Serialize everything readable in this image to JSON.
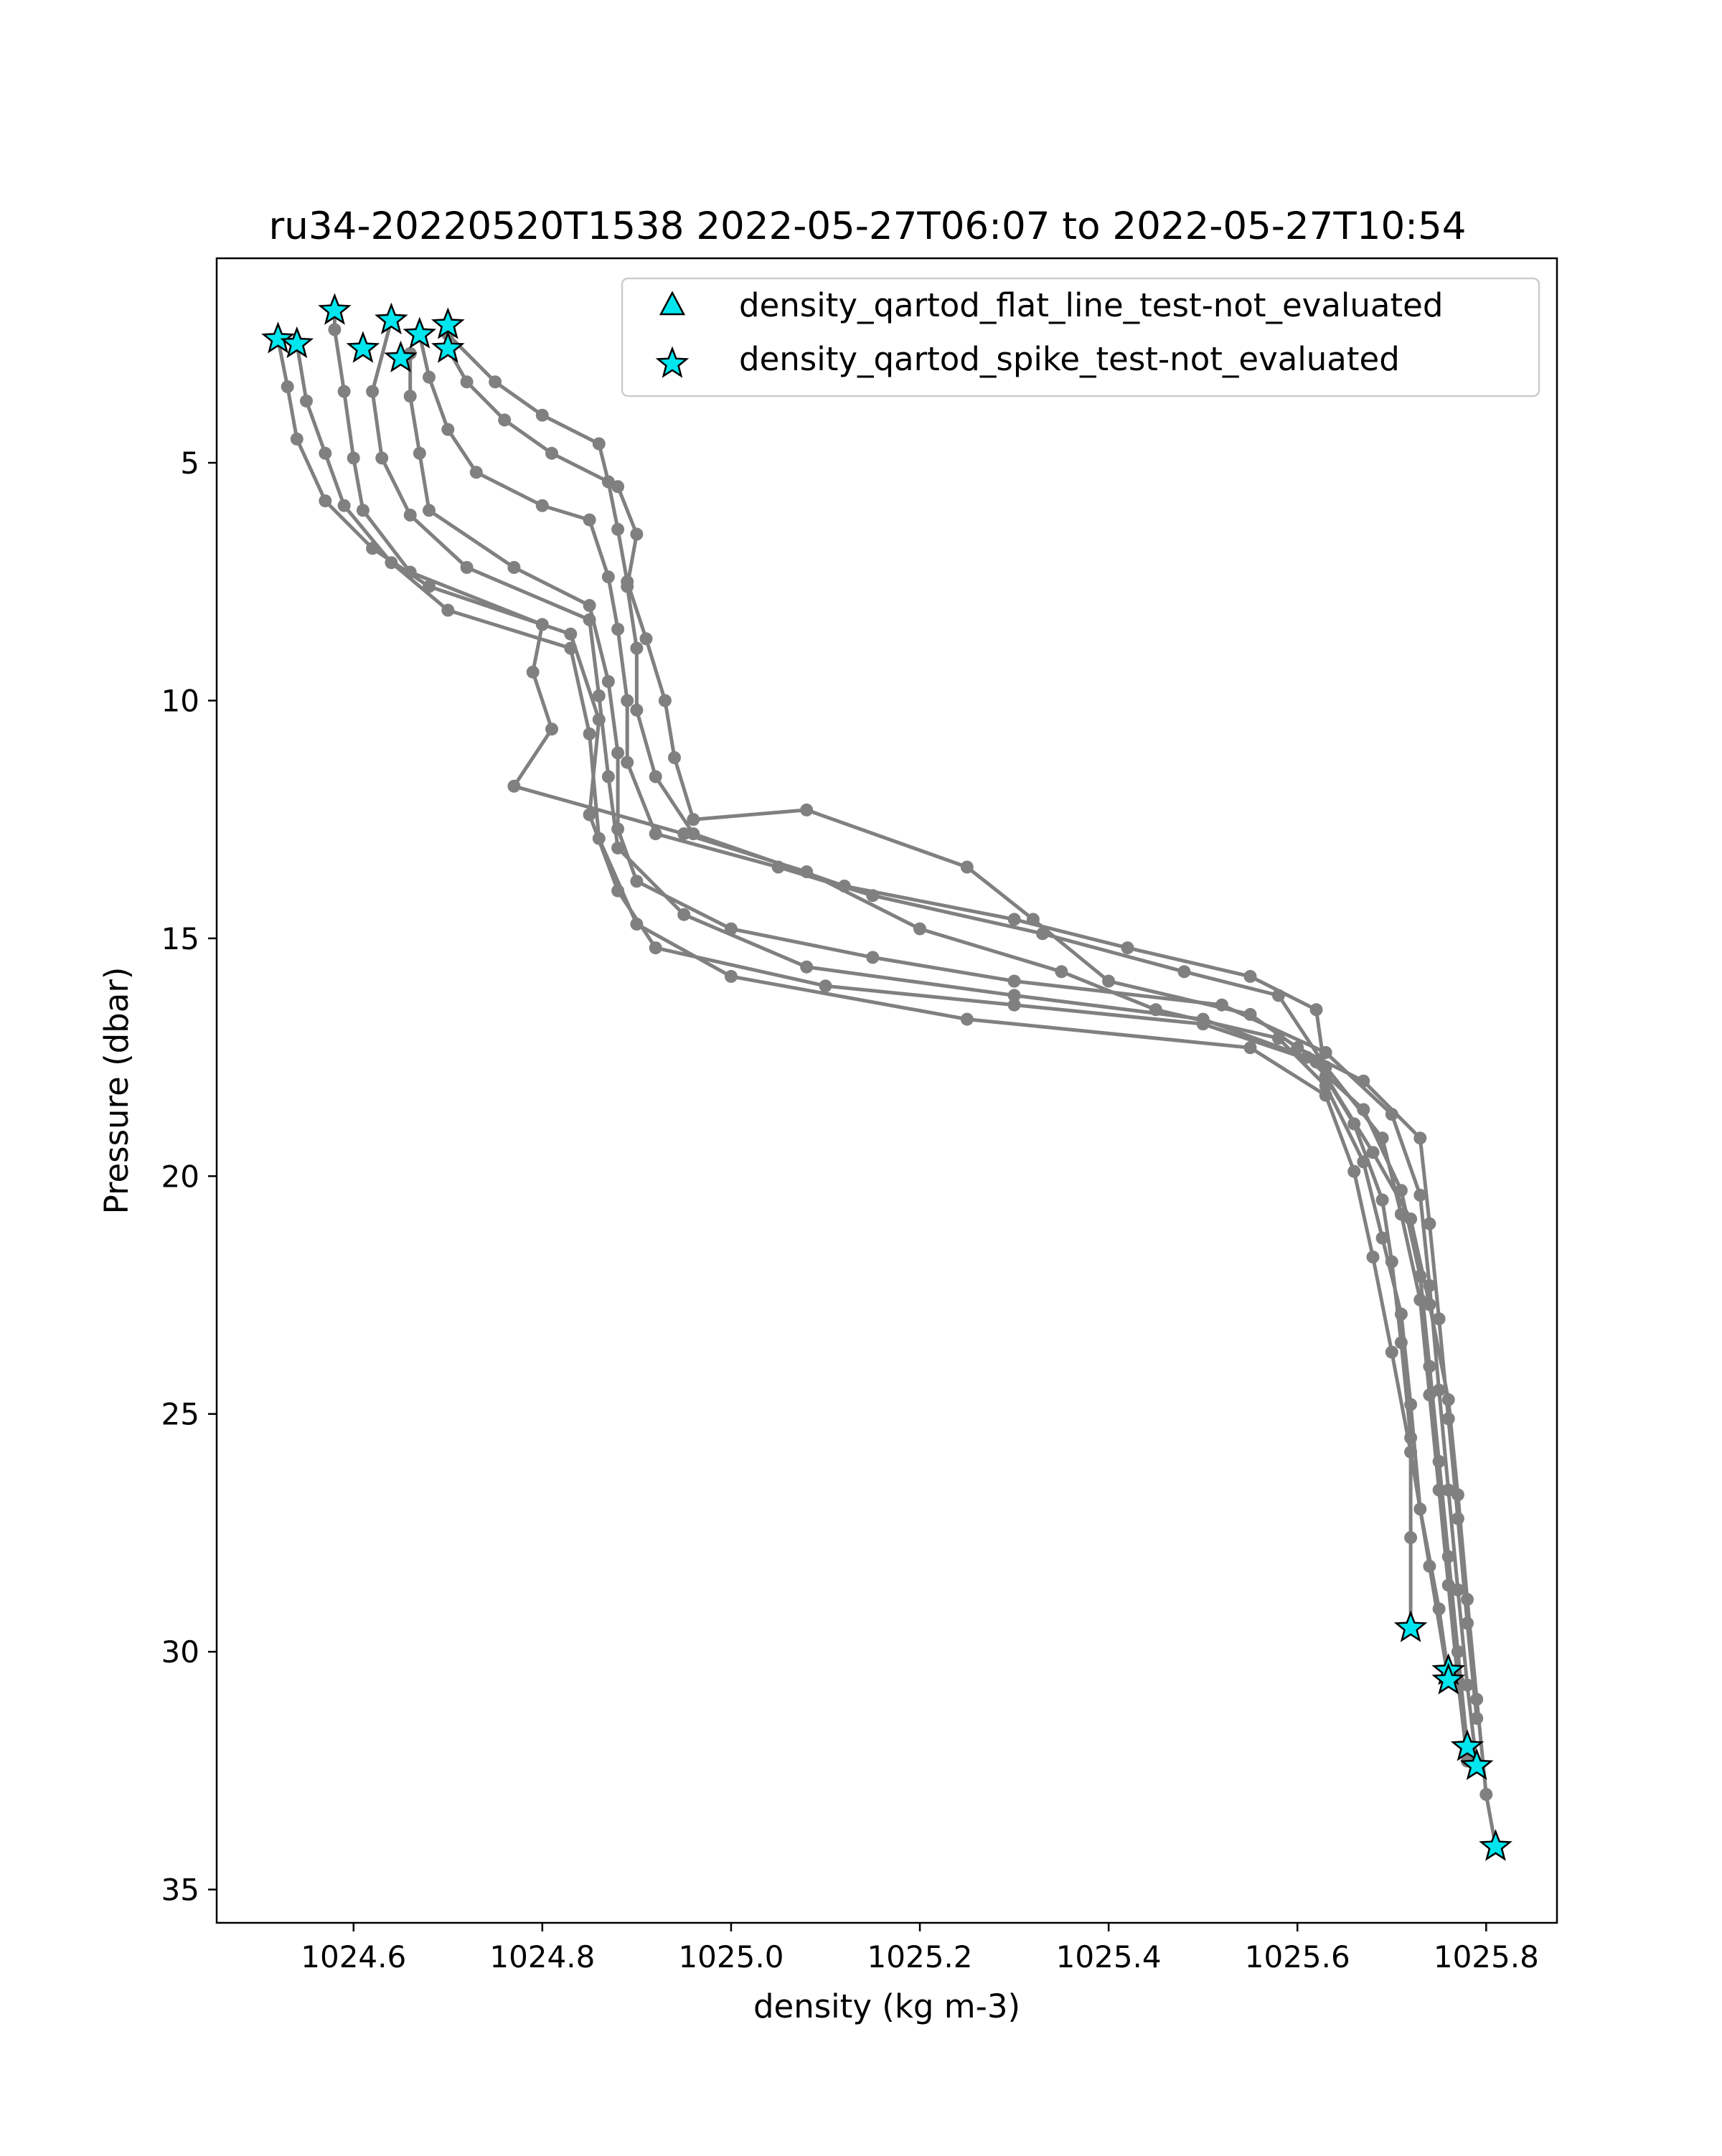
{
  "chart_data": {
    "type": "line",
    "title": "ru34-20220520T1538 2022-05-27T06:07 to 2022-05-27T10:54",
    "xlabel": "density (kg m-3)",
    "ylabel": "Pressure (dbar)",
    "xlim": [
      1024.455,
      1025.875
    ],
    "ylim": [
      35.7,
      0.7
    ],
    "y_inverted": true,
    "x_ticks": [
      1024.6,
      1024.8,
      1025.0,
      1025.2,
      1025.4,
      1025.6,
      1025.8
    ],
    "x_tick_labels": [
      "1024.6",
      "1024.8",
      "1025.0",
      "1025.2",
      "1025.4",
      "1025.6",
      "1025.8"
    ],
    "y_ticks": [
      5,
      10,
      15,
      20,
      25,
      30,
      35
    ],
    "y_tick_labels": [
      "5",
      "10",
      "15",
      "20",
      "25",
      "30",
      "35"
    ],
    "grid": false,
    "legend_position": "top-right",
    "line_color": "#808080",
    "marker_color": "#00e5ee",
    "legend": [
      {
        "label": "density_qartod_flat_line_test-not_evaluated",
        "marker": "triangle"
      },
      {
        "label": "density_qartod_spike_test-not_evaluated",
        "marker": "star"
      }
    ],
    "profiles": [
      {
        "points": [
          [
            1024.52,
            2.4
          ],
          [
            1024.53,
            3.4
          ],
          [
            1024.54,
            4.5
          ],
          [
            1024.57,
            5.8
          ],
          [
            1024.62,
            6.8
          ],
          [
            1024.68,
            7.6
          ],
          [
            1024.83,
            8.6
          ],
          [
            1024.86,
            10.4
          ],
          [
            1024.85,
            12.4
          ],
          [
            1024.88,
            14.0
          ],
          [
            1024.92,
            15.2
          ],
          [
            1025.1,
            16.0
          ],
          [
            1025.3,
            16.4
          ],
          [
            1025.5,
            16.8
          ],
          [
            1025.62,
            17.6
          ],
          [
            1025.66,
            18.9
          ],
          [
            1025.69,
            20.5
          ],
          [
            1025.7,
            21.8
          ],
          [
            1025.71,
            23.5
          ],
          [
            1025.72,
            25.5
          ],
          [
            1025.72,
            27.6
          ],
          [
            1025.72,
            29.5
          ]
        ]
      },
      {
        "points": [
          [
            1024.54,
            2.5
          ],
          [
            1024.55,
            3.7
          ],
          [
            1024.57,
            4.8
          ],
          [
            1024.59,
            5.9
          ],
          [
            1024.64,
            7.1
          ],
          [
            1024.7,
            8.1
          ],
          [
            1024.83,
            8.9
          ],
          [
            1024.85,
            10.7
          ],
          [
            1024.86,
            12.9
          ],
          [
            1024.9,
            14.7
          ],
          [
            1025.0,
            15.8
          ],
          [
            1025.25,
            16.7
          ],
          [
            1025.55,
            17.3
          ],
          [
            1025.63,
            18.3
          ],
          [
            1025.66,
            19.9
          ],
          [
            1025.68,
            21.7
          ],
          [
            1025.7,
            23.7
          ],
          [
            1025.72,
            25.8
          ],
          [
            1025.74,
            28.2
          ],
          [
            1025.76,
            30.6
          ]
        ]
      },
      {
        "points": [
          [
            1024.58,
            1.8
          ],
          [
            1024.58,
            2.2
          ],
          [
            1024.59,
            3.5
          ],
          [
            1024.6,
            4.9
          ],
          [
            1024.61,
            6.0
          ],
          [
            1024.66,
            7.3
          ],
          [
            1024.8,
            8.4
          ],
          [
            1024.79,
            9.4
          ],
          [
            1024.81,
            10.6
          ],
          [
            1024.77,
            11.8
          ],
          [
            1024.95,
            12.8
          ],
          [
            1025.08,
            13.6
          ],
          [
            1025.2,
            14.8
          ],
          [
            1025.35,
            15.7
          ],
          [
            1025.45,
            16.5
          ],
          [
            1025.58,
            17.1
          ],
          [
            1025.63,
            18.1
          ],
          [
            1025.67,
            19.7
          ],
          [
            1025.69,
            21.3
          ],
          [
            1025.71,
            22.9
          ],
          [
            1025.72,
            24.8
          ],
          [
            1025.73,
            27.0
          ],
          [
            1025.75,
            29.1
          ],
          [
            1025.76,
            30.5
          ]
        ]
      },
      {
        "points": [
          [
            1024.64,
            2.0
          ],
          [
            1024.62,
            3.5
          ],
          [
            1024.63,
            4.9
          ],
          [
            1024.66,
            6.1
          ],
          [
            1024.72,
            7.2
          ],
          [
            1024.85,
            8.3
          ],
          [
            1024.86,
            9.9
          ],
          [
            1024.87,
            11.6
          ],
          [
            1024.88,
            13.1
          ],
          [
            1024.95,
            14.5
          ],
          [
            1025.08,
            15.6
          ],
          [
            1025.3,
            16.2
          ],
          [
            1025.5,
            16.7
          ],
          [
            1025.61,
            17.5
          ],
          [
            1025.67,
            18.6
          ],
          [
            1025.71,
            20.3
          ],
          [
            1025.73,
            22.1
          ],
          [
            1025.74,
            24.0
          ],
          [
            1025.75,
            26.0
          ],
          [
            1025.76,
            28.0
          ],
          [
            1025.77,
            30.0
          ],
          [
            1025.78,
            32.0
          ]
        ]
      },
      {
        "points": [
          [
            1024.66,
            2.7
          ],
          [
            1024.66,
            3.6
          ],
          [
            1024.67,
            4.8
          ],
          [
            1024.68,
            6.0
          ],
          [
            1024.77,
            7.2
          ],
          [
            1024.85,
            8.0
          ],
          [
            1024.87,
            9.6
          ],
          [
            1024.88,
            11.1
          ],
          [
            1024.88,
            12.7
          ],
          [
            1024.9,
            13.8
          ],
          [
            1025.0,
            14.8
          ],
          [
            1025.15,
            15.4
          ],
          [
            1025.3,
            15.9
          ],
          [
            1025.52,
            16.4
          ],
          [
            1025.63,
            17.4
          ],
          [
            1025.7,
            18.7
          ],
          [
            1025.73,
            20.4
          ],
          [
            1025.74,
            22.3
          ],
          [
            1025.75,
            24.5
          ],
          [
            1025.76,
            26.6
          ],
          [
            1025.77,
            28.7
          ],
          [
            1025.78,
            30.7
          ],
          [
            1025.79,
            32.4
          ]
        ]
      },
      {
        "points": [
          [
            1024.7,
            2.6
          ],
          [
            1024.72,
            3.3
          ],
          [
            1024.76,
            4.1
          ],
          [
            1024.81,
            4.8
          ],
          [
            1024.88,
            5.5
          ],
          [
            1024.9,
            6.5
          ],
          [
            1024.89,
            7.6
          ],
          [
            1024.9,
            8.9
          ],
          [
            1024.9,
            10.2
          ],
          [
            1024.92,
            11.6
          ],
          [
            1024.96,
            12.8
          ],
          [
            1025.12,
            13.9
          ],
          [
            1025.3,
            14.6
          ],
          [
            1025.42,
            15.2
          ],
          [
            1025.55,
            15.8
          ],
          [
            1025.62,
            16.5
          ],
          [
            1025.63,
            17.9
          ],
          [
            1025.68,
            19.5
          ],
          [
            1025.72,
            20.9
          ],
          [
            1025.74,
            22.7
          ],
          [
            1025.76,
            24.7
          ],
          [
            1025.77,
            26.7
          ],
          [
            1025.78,
            28.9
          ],
          [
            1025.79,
            31.0
          ],
          [
            1025.8,
            33.0
          ],
          [
            1025.81,
            34.1
          ]
        ]
      },
      {
        "points": [
          [
            1024.7,
            2.3
          ],
          [
            1024.75,
            3.3
          ],
          [
            1024.8,
            4.0
          ],
          [
            1024.86,
            4.6
          ],
          [
            1024.87,
            5.4
          ],
          [
            1024.88,
            6.4
          ],
          [
            1024.89,
            7.5
          ],
          [
            1024.91,
            8.7
          ],
          [
            1024.93,
            10.0
          ],
          [
            1024.94,
            11.2
          ],
          [
            1024.96,
            12.5
          ],
          [
            1025.08,
            12.3
          ],
          [
            1025.25,
            13.5
          ],
          [
            1025.32,
            14.6
          ],
          [
            1025.4,
            15.9
          ],
          [
            1025.55,
            16.6
          ],
          [
            1025.6,
            17.3
          ],
          [
            1025.67,
            18.0
          ],
          [
            1025.73,
            19.2
          ],
          [
            1025.74,
            21.0
          ],
          [
            1025.75,
            23.0
          ],
          [
            1025.76,
            25.1
          ],
          [
            1025.77,
            27.2
          ],
          [
            1025.78,
            29.4
          ],
          [
            1025.79,
            31.4
          ]
        ]
      },
      {
        "points": [
          [
            1024.67,
            2.3
          ],
          [
            1024.68,
            3.2
          ],
          [
            1024.7,
            4.3
          ],
          [
            1024.73,
            5.2
          ],
          [
            1024.8,
            5.9
          ],
          [
            1024.85,
            6.2
          ],
          [
            1024.87,
            7.4
          ],
          [
            1024.88,
            8.5
          ],
          [
            1024.89,
            10.0
          ],
          [
            1024.89,
            11.3
          ],
          [
            1024.92,
            12.8
          ],
          [
            1025.05,
            13.5
          ],
          [
            1025.15,
            14.1
          ],
          [
            1025.33,
            14.9
          ],
          [
            1025.48,
            15.7
          ],
          [
            1025.58,
            16.2
          ],
          [
            1025.63,
            17.7
          ],
          [
            1025.69,
            19.2
          ],
          [
            1025.71,
            20.8
          ],
          [
            1025.73,
            22.6
          ],
          [
            1025.74,
            24.6
          ],
          [
            1025.75,
            26.6
          ],
          [
            1025.76,
            28.6
          ],
          [
            1025.77,
            30.6
          ],
          [
            1025.78,
            32.3
          ]
        ]
      }
    ],
    "spike_markers": [
      [
        1024.52,
        2.4
      ],
      [
        1024.54,
        2.5
      ],
      [
        1024.58,
        1.8
      ],
      [
        1024.61,
        2.6
      ],
      [
        1024.64,
        2.0
      ],
      [
        1024.65,
        2.8
      ],
      [
        1024.67,
        2.3
      ],
      [
        1024.7,
        2.1
      ],
      [
        1024.7,
        2.6
      ],
      [
        1025.72,
        29.5
      ],
      [
        1025.76,
        30.4
      ],
      [
        1025.76,
        30.6
      ],
      [
        1025.78,
        32.0
      ],
      [
        1025.79,
        32.4
      ],
      [
        1025.81,
        34.1
      ]
    ]
  }
}
